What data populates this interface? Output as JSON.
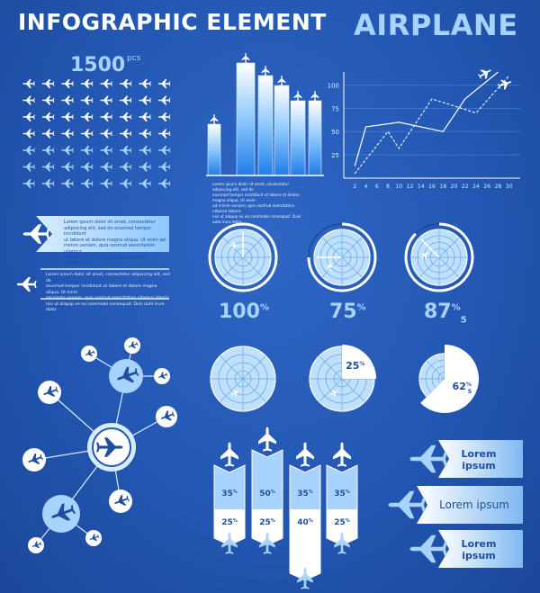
{
  "title": {
    "main": "INFOGRAPHIC ELEMENT",
    "accent": "AIRPLANE"
  },
  "fleet": {
    "count": "1500",
    "unit": "pcs",
    "rows": 7,
    "cols": 8,
    "dim_from_row": 4
  },
  "bar_block": {
    "caption": [
      "Lorem ipsum dolor sit amet, consectetur adipiscing elit, sed do",
      "eiusmod tempor incididunt ut labore et dolore magna aliqua. Ut enim",
      "ad minim veniam, quis nostrud exercitation ullamco laboris",
      "nisi ut aliquip ex ea commodo consequat. Duis aute irure dolor"
    ]
  },
  "chart_data": {
    "type": "line",
    "x": [
      2,
      4,
      6,
      8,
      10,
      12,
      14,
      16,
      18,
      20,
      22,
      24,
      26,
      28,
      30
    ],
    "x_ticks": [
      "2",
      "4",
      "6",
      "8",
      "10",
      "12",
      "14",
      "16",
      "18",
      "20",
      "22",
      "24",
      "26",
      "28",
      "30"
    ],
    "y_ticks": [
      "25",
      "50",
      "75",
      "100"
    ],
    "ylim": [
      0,
      112
    ],
    "series": [
      {
        "style": "solid",
        "points": [
          [
            2,
            13
          ],
          [
            4,
            55
          ],
          [
            10,
            60
          ],
          [
            18,
            50
          ],
          [
            22,
            85
          ],
          [
            28,
            118
          ]
        ]
      },
      {
        "style": "dashed",
        "points": [
          [
            2,
            5
          ],
          [
            8,
            50
          ],
          [
            10,
            32
          ],
          [
            16,
            85
          ],
          [
            24,
            70
          ],
          [
            30,
            110
          ]
        ]
      }
    ]
  },
  "banners": [
    {
      "text": [
        "Lorem ipsum dolor sit amet, consectetur",
        "adipiscing elit, sed do eiusmod tempor incididunt",
        "ut labore et dolore magna aliqua. Ut enim ad",
        "minim veniam, quis nostrud exercitation ullamco",
        "laboris nisi ut aliquip ex ea commodo consequat."
      ]
    },
    {
      "text": [
        "Lorem ipsum dolor sit amet, consectetur adipiscing elit, sed do",
        "eiusmod tempor incididunt ut labore et dolore magna aliqua. Ut enim",
        "ad minim veniam, quis nostrud exercitation ullamco laboris",
        "nisi ut aliquip ex ea commodo consequat. Duis aute irure dolor"
      ]
    }
  ],
  "radars": [
    {
      "value": "100",
      "sup": "%",
      "sub": "",
      "progress": 1.0
    },
    {
      "value": "75",
      "sup": "%",
      "sub": "",
      "progress": 0.75
    },
    {
      "value": "87",
      "sup": "%",
      "sub": "5",
      "progress": 0.875
    }
  ],
  "pies": [
    {
      "label": "",
      "sup": "",
      "share": 0
    },
    {
      "label": "25",
      "sup": "%",
      "share": 0.25
    },
    {
      "label": "62",
      "sup": "%",
      "sub": "5",
      "share": 0.625
    }
  ],
  "arrow_columns": [
    {
      "top": "35",
      "bottom": "25",
      "top_share": 0.35,
      "bottom_share": 0.25
    },
    {
      "top": "50",
      "bottom": "25",
      "top_share": 0.5,
      "bottom_share": 0.25
    },
    {
      "top": "35",
      "bottom": "40",
      "top_share": 0.35,
      "bottom_share": 0.4
    },
    {
      "top": "35",
      "bottom": "25",
      "top_share": 0.35,
      "bottom_share": 0.25
    }
  ],
  "pct_symbol": "%",
  "labels": [
    {
      "line1": "Lorem",
      "line2": "ipsum"
    },
    {
      "line1": "Lorem ipsum",
      "line2": ""
    },
    {
      "line1": "Lorem",
      "line2": "ipsum"
    }
  ]
}
